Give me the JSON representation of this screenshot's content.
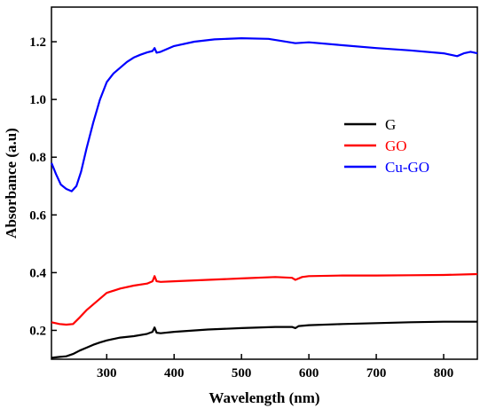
{
  "chart_data": {
    "type": "line",
    "title": "",
    "xlabel": "Wavelength (nm)",
    "ylabel": "Absorbance (a.u)",
    "xlim": [
      218,
      850
    ],
    "ylim": [
      0.1,
      1.32
    ],
    "xticks": [
      300,
      400,
      500,
      600,
      700,
      800
    ],
    "yticks": [
      0.2,
      0.4,
      0.6,
      0.8,
      1.0,
      1.2
    ],
    "xtick_labels": [
      "300",
      "400",
      "500",
      "600",
      "700",
      "800"
    ],
    "ytick_labels": [
      "0.2",
      "0.4",
      "0.6",
      "0.8",
      "1.0",
      "1.2"
    ],
    "grid": false,
    "legend_position": "center-right",
    "series": [
      {
        "name": "G",
        "color": "#000000",
        "points": [
          [
            218,
            0.105
          ],
          [
            230,
            0.108
          ],
          [
            240,
            0.11
          ],
          [
            250,
            0.118
          ],
          [
            260,
            0.13
          ],
          [
            270,
            0.14
          ],
          [
            280,
            0.15
          ],
          [
            290,
            0.158
          ],
          [
            300,
            0.165
          ],
          [
            320,
            0.175
          ],
          [
            340,
            0.18
          ],
          [
            360,
            0.188
          ],
          [
            368,
            0.195
          ],
          [
            371,
            0.21
          ],
          [
            374,
            0.192
          ],
          [
            380,
            0.19
          ],
          [
            400,
            0.195
          ],
          [
            450,
            0.203
          ],
          [
            500,
            0.208
          ],
          [
            550,
            0.212
          ],
          [
            575,
            0.212
          ],
          [
            580,
            0.208
          ],
          [
            585,
            0.215
          ],
          [
            600,
            0.218
          ],
          [
            650,
            0.222
          ],
          [
            700,
            0.225
          ],
          [
            750,
            0.228
          ],
          [
            800,
            0.23
          ],
          [
            850,
            0.23
          ]
        ]
      },
      {
        "name": "GO",
        "color": "#ff0000",
        "points": [
          [
            218,
            0.228
          ],
          [
            230,
            0.222
          ],
          [
            240,
            0.22
          ],
          [
            250,
            0.222
          ],
          [
            260,
            0.245
          ],
          [
            270,
            0.27
          ],
          [
            280,
            0.29
          ],
          [
            290,
            0.31
          ],
          [
            300,
            0.33
          ],
          [
            320,
            0.345
          ],
          [
            340,
            0.355
          ],
          [
            360,
            0.362
          ],
          [
            368,
            0.37
          ],
          [
            371,
            0.388
          ],
          [
            374,
            0.37
          ],
          [
            380,
            0.368
          ],
          [
            400,
            0.37
          ],
          [
            450,
            0.375
          ],
          [
            500,
            0.38
          ],
          [
            550,
            0.385
          ],
          [
            575,
            0.382
          ],
          [
            580,
            0.375
          ],
          [
            590,
            0.385
          ],
          [
            600,
            0.388
          ],
          [
            650,
            0.39
          ],
          [
            700,
            0.39
          ],
          [
            750,
            0.391
          ],
          [
            800,
            0.392
          ],
          [
            850,
            0.395
          ]
        ]
      },
      {
        "name": "Cu-GO",
        "color": "#0000ff",
        "points": [
          [
            218,
            0.78
          ],
          [
            225,
            0.74
          ],
          [
            232,
            0.705
          ],
          [
            240,
            0.69
          ],
          [
            248,
            0.682
          ],
          [
            255,
            0.7
          ],
          [
            262,
            0.75
          ],
          [
            270,
            0.83
          ],
          [
            280,
            0.92
          ],
          [
            290,
            1.0
          ],
          [
            300,
            1.06
          ],
          [
            310,
            1.09
          ],
          [
            320,
            1.11
          ],
          [
            330,
            1.13
          ],
          [
            340,
            1.145
          ],
          [
            350,
            1.155
          ],
          [
            360,
            1.163
          ],
          [
            368,
            1.168
          ],
          [
            371,
            1.178
          ],
          [
            374,
            1.162
          ],
          [
            380,
            1.165
          ],
          [
            400,
            1.185
          ],
          [
            430,
            1.2
          ],
          [
            460,
            1.208
          ],
          [
            500,
            1.212
          ],
          [
            540,
            1.21
          ],
          [
            580,
            1.195
          ],
          [
            600,
            1.198
          ],
          [
            650,
            1.188
          ],
          [
            700,
            1.178
          ],
          [
            750,
            1.17
          ],
          [
            800,
            1.16
          ],
          [
            820,
            1.15
          ],
          [
            830,
            1.16
          ],
          [
            840,
            1.165
          ],
          [
            850,
            1.16
          ]
        ]
      }
    ]
  }
}
